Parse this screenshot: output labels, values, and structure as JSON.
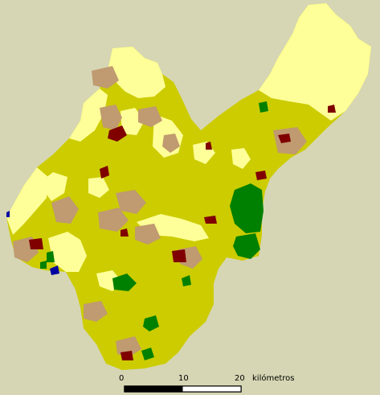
{
  "scale_bar": {
    "ticks": [
      "0",
      "10",
      "20"
    ],
    "unit": "kilómetros"
  },
  "colors": {
    "background": "#d6d6b4",
    "main_land": "#cccc00",
    "light_land": "#ffff99",
    "brown_areas": "#c09a70",
    "urban_dark": "#800000",
    "forest": "#008000",
    "water": "#0000a0",
    "scale_black": "#000000"
  }
}
